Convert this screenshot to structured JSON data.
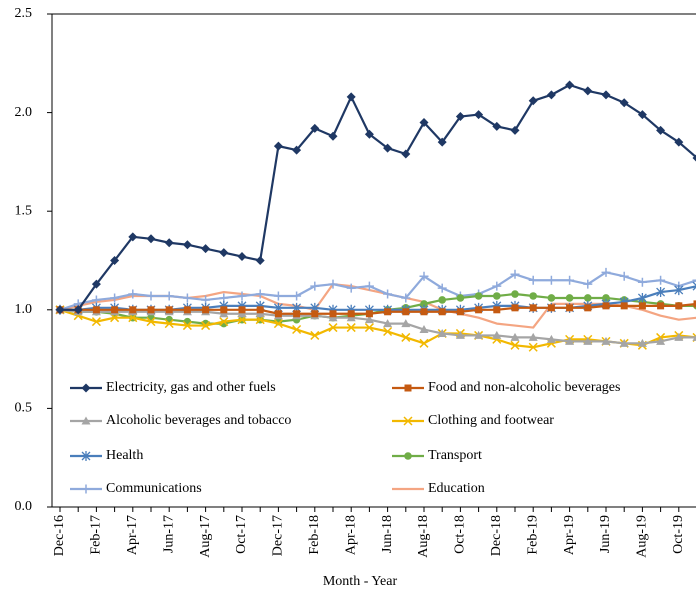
{
  "chart_data": {
    "type": "line",
    "x_label": "Month - Year",
    "categories": [
      "Dec-16",
      null,
      "Feb-17",
      null,
      "Apr-17",
      null,
      "Jun-17",
      null,
      "Aug-17",
      null,
      "Oct-17",
      null,
      "Dec-17",
      null,
      "Feb-18",
      null,
      "Apr-18",
      null,
      "Jun-18",
      null,
      "Aug-18",
      null,
      "Oct-18",
      null,
      "Dec-18",
      null,
      "Feb-19",
      null,
      "Apr-19",
      null,
      "Jun-19",
      null,
      "Aug-19",
      null,
      "Oct-19",
      null
    ],
    "ylim": [
      0,
      2.5
    ],
    "yticks": [
      {
        "value": 0,
        "label": "0.0"
      },
      0.5,
      {
        "value": 1,
        "label": "1.0"
      },
      1.5,
      {
        "value": 2,
        "label": "2.0"
      },
      2.5
    ],
    "series": [
      {
        "name": "Electricity, gas and other fuels",
        "color": "#1f3864",
        "marker": "diamond",
        "values": [
          1.0,
          1.0,
          1.13,
          1.25,
          1.37,
          1.36,
          1.34,
          1.33,
          1.31,
          1.29,
          1.27,
          1.25,
          1.83,
          1.81,
          1.92,
          1.88,
          2.08,
          1.89,
          1.82,
          1.79,
          1.95,
          1.85,
          1.98,
          1.99,
          1.93,
          1.91,
          2.06,
          2.09,
          2.14,
          2.11,
          2.09,
          2.05,
          1.99,
          1.91,
          1.85,
          1.77
        ]
      },
      {
        "name": "Food and non-alcoholic beverages",
        "color": "#c55a11",
        "marker": "square",
        "values": [
          1.0,
          1.0,
          1.0,
          1.0,
          1.0,
          1.0,
          1.0,
          1.0,
          1.0,
          1.0,
          1.0,
          1.0,
          0.98,
          0.98,
          0.98,
          0.98,
          0.98,
          0.98,
          0.99,
          0.99,
          0.99,
          0.99,
          0.99,
          1.0,
          1.0,
          1.01,
          1.01,
          1.01,
          1.01,
          1.01,
          1.02,
          1.02,
          1.02,
          1.02,
          1.02,
          1.03
        ]
      },
      {
        "name": "Alcoholic beverages and tobacco",
        "color": "#a5a5a5",
        "marker": "triangle",
        "values": [
          1.0,
          0.99,
          0.99,
          0.99,
          0.99,
          0.99,
          0.99,
          0.99,
          0.99,
          0.98,
          0.98,
          0.98,
          0.97,
          0.97,
          0.97,
          0.96,
          0.96,
          0.95,
          0.93,
          0.93,
          0.9,
          0.88,
          0.87,
          0.87,
          0.87,
          0.86,
          0.86,
          0.85,
          0.84,
          0.84,
          0.84,
          0.83,
          0.83,
          0.84,
          0.86,
          0.86
        ]
      },
      {
        "name": "Clothing and footwear",
        "color": "#f2b800",
        "marker": "x",
        "values": [
          1.0,
          0.97,
          0.94,
          0.96,
          0.96,
          0.94,
          0.93,
          0.92,
          0.92,
          0.94,
          0.95,
          0.95,
          0.93,
          0.9,
          0.87,
          0.91,
          0.91,
          0.91,
          0.89,
          0.86,
          0.83,
          0.88,
          0.88,
          0.87,
          0.85,
          0.82,
          0.81,
          0.83,
          0.85,
          0.85,
          0.84,
          0.83,
          0.82,
          0.86,
          0.87,
          0.86
        ]
      },
      {
        "name": "Health",
        "color": "#4a7ebb",
        "marker": "star",
        "values": [
          1.0,
          1.0,
          1.01,
          1.01,
          1.0,
          1.0,
          1.0,
          1.01,
          1.01,
          1.02,
          1.02,
          1.02,
          1.01,
          1.01,
          1.01,
          1.0,
          1.0,
          1.0,
          1.0,
          1.0,
          1.0,
          1.0,
          1.0,
          1.01,
          1.02,
          1.02,
          1.01,
          1.01,
          1.01,
          1.02,
          1.03,
          1.04,
          1.06,
          1.09,
          1.1,
          1.12
        ]
      },
      {
        "name": "Transport",
        "color": "#70ad47",
        "marker": "circle",
        "values": [
          1.0,
          0.99,
          0.99,
          0.98,
          0.96,
          0.96,
          0.95,
          0.94,
          0.93,
          0.93,
          0.95,
          0.95,
          0.94,
          0.95,
          0.97,
          0.96,
          0.97,
          0.98,
          1.0,
          1.01,
          1.03,
          1.05,
          1.06,
          1.07,
          1.07,
          1.08,
          1.07,
          1.06,
          1.06,
          1.06,
          1.06,
          1.05,
          1.04,
          1.03,
          1.02,
          1.02
        ]
      },
      {
        "name": "Communications",
        "color": "#8faadc",
        "marker": "plus",
        "values": [
          1.0,
          1.03,
          1.05,
          1.06,
          1.08,
          1.07,
          1.07,
          1.06,
          1.05,
          1.06,
          1.07,
          1.08,
          1.07,
          1.07,
          1.12,
          1.13,
          1.11,
          1.12,
          1.08,
          1.06,
          1.17,
          1.11,
          1.07,
          1.08,
          1.12,
          1.18,
          1.15,
          1.15,
          1.15,
          1.13,
          1.19,
          1.17,
          1.14,
          1.15,
          1.12,
          1.15
        ]
      },
      {
        "name": "Education",
        "color": "#f4a582",
        "marker": "none",
        "values": [
          1.0,
          1.02,
          1.04,
          1.05,
          1.07,
          1.07,
          1.07,
          1.06,
          1.07,
          1.09,
          1.08,
          1.07,
          1.03,
          1.02,
          1.0,
          1.13,
          1.12,
          1.1,
          1.08,
          1.06,
          1.04,
          1.0,
          0.98,
          0.96,
          0.93,
          0.92,
          0.91,
          1.03,
          1.03,
          1.03,
          1.03,
          1.02,
          1.0,
          0.97,
          0.95,
          0.96
        ]
      }
    ]
  }
}
